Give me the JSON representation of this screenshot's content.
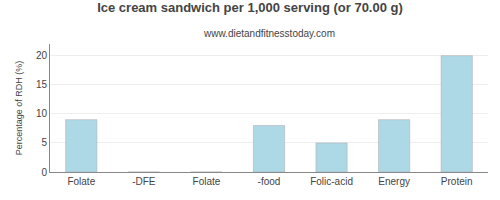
{
  "chart_data": {
    "type": "bar",
    "title": "Ice cream sandwich per 1,000 serving (or 70.00 g)",
    "subtitle": "www.dietandfitnesstoday.com",
    "categories": [
      "Folate",
      "-DFE",
      "Folate",
      "-food",
      "Folic-acid",
      "Energy",
      "Protein"
    ],
    "values": [
      9,
      0,
      0,
      8,
      5,
      9,
      20
    ],
    "color": "#add8e6",
    "ylabel": "Percentage of RDH (%)",
    "ylim": [
      0,
      22
    ],
    "yticks": [
      0,
      5,
      10,
      15,
      20
    ],
    "grid": true
  }
}
